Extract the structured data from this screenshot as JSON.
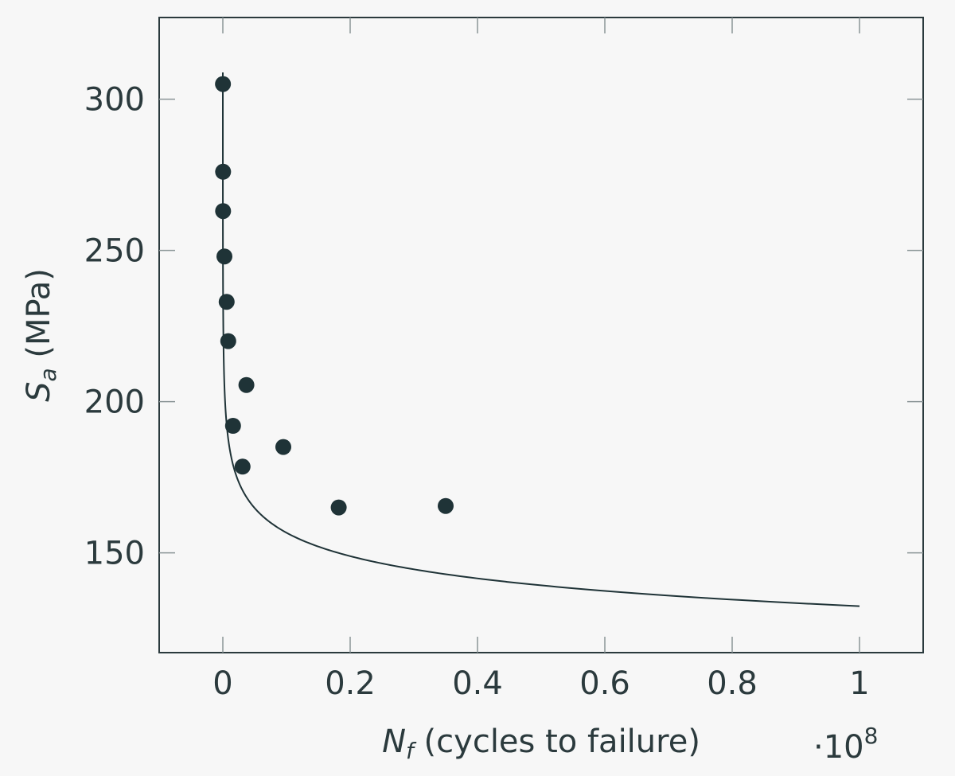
{
  "chart_data": {
    "type": "scatter",
    "title": "",
    "xlabel_symbol": "N",
    "xlabel_sub": "f",
    "xlabel_text": " (cycles to failure)",
    "ylabel_symbol": "S",
    "ylabel_sub": "a",
    "ylabel_text": " (MPa)",
    "x_multiplier_label": "·10",
    "x_multiplier_exp": "8",
    "xlim": [
      -0.1,
      1.1
    ],
    "ylim": [
      117,
      327
    ],
    "x_ticks": [
      0,
      0.2,
      0.4,
      0.6,
      0.8,
      1
    ],
    "x_tick_labels": [
      "0",
      "0.2",
      "0.4",
      "0.6",
      "0.8",
      "1"
    ],
    "y_ticks": [
      150,
      200,
      250,
      300
    ],
    "y_tick_labels": [
      "150",
      "200",
      "250",
      "300"
    ],
    "grid": false,
    "series": [
      {
        "type": "scatter",
        "x": [
          0.0002,
          0.0004,
          0.0004,
          0.0025,
          0.006,
          0.0085,
          0.037,
          0.016,
          0.031,
          0.095,
          0.182,
          0.35
        ],
        "y": [
          305,
          276,
          263,
          248,
          233,
          220,
          205.5,
          192,
          178.5,
          185,
          165,
          165.5
        ]
      },
      {
        "type": "line",
        "fit": "power",
        "fit_A": 509.3,
        "fit_b": -0.07315,
        "x_start": 1e-06,
        "x_end": 1
      }
    ]
  }
}
